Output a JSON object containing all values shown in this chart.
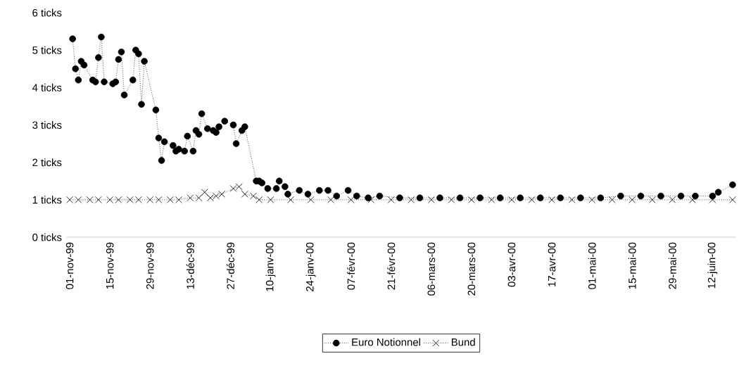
{
  "chart_data": {
    "type": "line",
    "xlim": [
      "1999-10-31",
      "2000-06-20"
    ],
    "xticks": [
      {
        "value": "1999-11-01",
        "label": "01-nov-99"
      },
      {
        "value": "1999-11-15",
        "label": "15-nov-99"
      },
      {
        "value": "1999-11-29",
        "label": "29-nov-99"
      },
      {
        "value": "1999-12-13",
        "label": "13-déc-99"
      },
      {
        "value": "1999-12-27",
        "label": "27-déc-99"
      },
      {
        "value": "2000-01-10",
        "label": "10-janv-00"
      },
      {
        "value": "2000-01-24",
        "label": "24-janv-00"
      },
      {
        "value": "2000-02-07",
        "label": "07-févr-00"
      },
      {
        "value": "2000-02-21",
        "label": "21-févr-00"
      },
      {
        "value": "2000-03-06",
        "label": "06-mars-00"
      },
      {
        "value": "2000-03-20",
        "label": "20-mars-00"
      },
      {
        "value": "2000-04-03",
        "label": "03-avr-00"
      },
      {
        "value": "2000-04-17",
        "label": "17-avr-00"
      },
      {
        "value": "2000-05-01",
        "label": "01-mai-00"
      },
      {
        "value": "2000-05-15",
        "label": "15-mai-00"
      },
      {
        "value": "2000-05-29",
        "label": "29-mai-00"
      },
      {
        "value": "2000-06-12",
        "label": "12-juin-00"
      }
    ],
    "ylim": [
      0,
      6
    ],
    "yticks": [
      {
        "value": 0,
        "label": "0 ticks"
      },
      {
        "value": 1,
        "label": "1 ticks"
      },
      {
        "value": 2,
        "label": "2 ticks"
      },
      {
        "value": 3,
        "label": "3 ticks"
      },
      {
        "value": 4,
        "label": "4 ticks"
      },
      {
        "value": 5,
        "label": "5 ticks"
      },
      {
        "value": 6,
        "label": "6 ticks"
      }
    ],
    "grid": false,
    "legend": "bottom",
    "line_style": "dotted",
    "series": [
      {
        "name": "Euro Notionnel",
        "color": "#000000",
        "marker": "circle",
        "x": [
          "1999-11-02",
          "1999-11-03",
          "1999-11-04",
          "1999-11-05",
          "1999-11-06",
          "1999-11-09",
          "1999-11-10",
          "1999-11-11",
          "1999-11-12",
          "1999-11-13",
          "1999-11-16",
          "1999-11-17",
          "1999-11-18",
          "1999-11-19",
          "1999-11-20",
          "1999-11-23",
          "1999-11-24",
          "1999-11-25",
          "1999-11-26",
          "1999-11-27",
          "1999-12-01",
          "1999-12-02",
          "1999-12-03",
          "1999-12-04",
          "1999-12-07",
          "1999-12-08",
          "1999-12-09",
          "1999-12-11",
          "1999-12-12",
          "1999-12-14",
          "1999-12-15",
          "1999-12-16",
          "1999-12-17",
          "1999-12-19",
          "1999-12-21",
          "1999-12-22",
          "1999-12-23",
          "1999-12-25",
          "1999-12-28",
          "1999-12-29",
          "1999-12-31",
          "2000-01-01",
          "2000-01-05",
          "2000-01-06",
          "2000-01-07",
          "2000-01-09",
          "2000-01-12",
          "2000-01-13",
          "2000-01-15",
          "2000-01-16",
          "2000-01-20",
          "2000-01-23",
          "2000-01-27",
          "2000-01-30",
          "2000-02-02",
          "2000-02-06",
          "2000-02-09",
          "2000-02-13",
          "2000-02-17",
          "2000-02-24",
          "2000-03-02",
          "2000-03-09",
          "2000-03-16",
          "2000-03-23",
          "2000-03-30",
          "2000-04-06",
          "2000-04-13",
          "2000-04-20",
          "2000-04-27",
          "2000-05-04",
          "2000-05-11",
          "2000-05-18",
          "2000-05-25",
          "2000-06-01",
          "2000-06-06",
          "2000-06-12",
          "2000-06-14",
          "2000-06-19"
        ],
        "values": [
          5.3,
          4.5,
          4.2,
          4.7,
          4.6,
          4.2,
          4.15,
          4.8,
          5.35,
          4.15,
          4.1,
          4.15,
          4.75,
          4.95,
          3.8,
          4.2,
          5.0,
          4.9,
          3.55,
          4.7,
          3.4,
          2.65,
          2.05,
          2.55,
          2.45,
          2.3,
          2.35,
          2.3,
          2.7,
          2.3,
          2.85,
          2.75,
          3.3,
          2.9,
          2.85,
          2.8,
          2.95,
          3.1,
          3.0,
          2.5,
          2.85,
          2.95,
          1.5,
          1.5,
          1.45,
          1.3,
          1.3,
          1.5,
          1.35,
          1.15,
          1.25,
          1.15,
          1.25,
          1.25,
          1.1,
          1.25,
          1.1,
          1.05,
          1.1,
          1.05,
          1.05,
          1.05,
          1.05,
          1.05,
          1.05,
          1.05,
          1.05,
          1.05,
          1.05,
          1.05,
          1.1,
          1.1,
          1.1,
          1.1,
          1.1,
          1.1,
          1.2,
          1.4
        ]
      },
      {
        "name": "Bund",
        "color": "#000000",
        "marker": "cross",
        "x": [
          "1999-11-01",
          "1999-11-04",
          "1999-11-08",
          "1999-11-11",
          "1999-11-15",
          "1999-11-18",
          "1999-11-22",
          "1999-11-25",
          "1999-11-29",
          "1999-12-02",
          "1999-12-06",
          "1999-12-09",
          "1999-12-13",
          "1999-12-16",
          "1999-12-18",
          "1999-12-20",
          "1999-12-22",
          "1999-12-24",
          "1999-12-28",
          "1999-12-30",
          "2000-01-01",
          "2000-01-04",
          "2000-01-06",
          "2000-01-10",
          "2000-01-17",
          "2000-01-24",
          "2000-01-31",
          "2000-02-07",
          "2000-02-14",
          "2000-02-21",
          "2000-02-28",
          "2000-03-06",
          "2000-03-13",
          "2000-03-20",
          "2000-03-27",
          "2000-04-03",
          "2000-04-10",
          "2000-04-17",
          "2000-04-24",
          "2000-05-01",
          "2000-05-08",
          "2000-05-15",
          "2000-05-22",
          "2000-05-29",
          "2000-06-05",
          "2000-06-12",
          "2000-06-19"
        ],
        "values": [
          1.0,
          1.0,
          1.0,
          1.0,
          1.0,
          1.0,
          1.0,
          1.0,
          1.0,
          1.0,
          1.0,
          1.0,
          1.05,
          1.05,
          1.2,
          1.05,
          1.1,
          1.15,
          1.3,
          1.35,
          1.15,
          1.1,
          1.0,
          1.0,
          1.0,
          1.0,
          1.0,
          1.0,
          1.0,
          1.0,
          1.0,
          1.0,
          1.0,
          1.0,
          1.0,
          1.0,
          1.0,
          1.0,
          1.0,
          1.0,
          1.0,
          1.0,
          1.0,
          1.0,
          1.0,
          1.0,
          1.0
        ]
      }
    ]
  }
}
